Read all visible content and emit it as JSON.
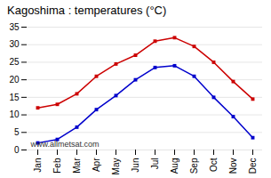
{
  "chart_data": {
    "type": "line",
    "title": "Kagoshima : temperatures (°C)",
    "categories": [
      "Jan",
      "Feb",
      "Mar",
      "Apr",
      "May",
      "Jun",
      "Jul",
      "Aug",
      "Sep",
      "Oct",
      "Nov",
      "Dec"
    ],
    "series": [
      {
        "color": "#cc0000",
        "marker": "square",
        "values": [
          12,
          13,
          16,
          21,
          24.5,
          27,
          31,
          32,
          29.5,
          25,
          19.5,
          14.5
        ]
      },
      {
        "color": "#0000cc",
        "marker": "square",
        "values": [
          2,
          3,
          6.5,
          11.5,
          15.5,
          20,
          23.5,
          24,
          21,
          15,
          9.5,
          3.5
        ]
      }
    ],
    "ylim": [
      0,
      35
    ],
    "yticks": [
      0,
      5,
      10,
      15,
      20,
      25,
      30,
      35
    ],
    "grid": "y",
    "annotations": [
      "www.allmetsat.com"
    ]
  }
}
